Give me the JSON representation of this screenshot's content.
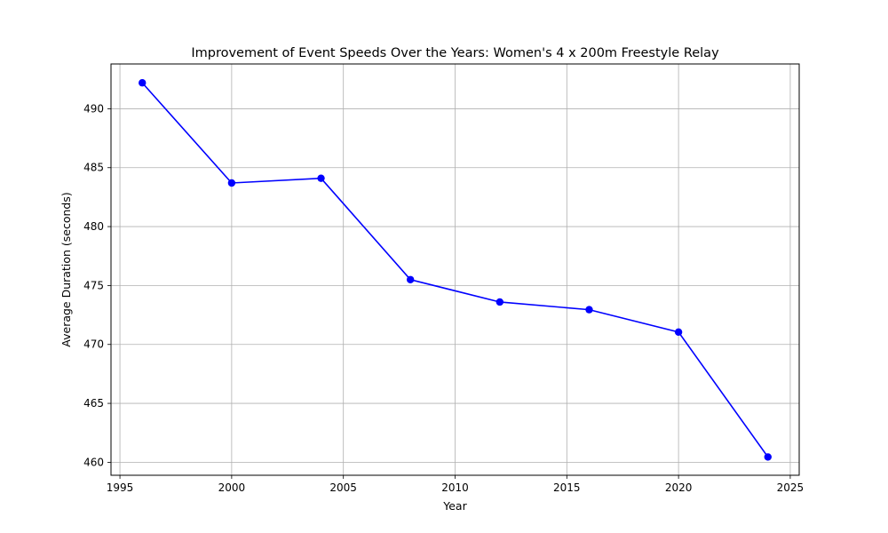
{
  "chart_data": {
    "type": "line",
    "title": "Improvement of Event Speeds Over the Years: Women's 4 x 200m Freestyle Relay",
    "xlabel": "Year",
    "ylabel": "Average Duration (seconds)",
    "xlim": [
      1994.6,
      2025.4
    ],
    "ylim": [
      458.9,
      493.8
    ],
    "xticks": [
      1995,
      2000,
      2005,
      2010,
      2015,
      2020,
      2025
    ],
    "yticks": [
      460,
      465,
      470,
      475,
      480,
      485,
      490
    ],
    "grid": true,
    "series": [
      {
        "color": "#0000ff",
        "marker": "circle",
        "points": [
          {
            "x": 1996,
            "y": 492.2
          },
          {
            "x": 2000,
            "y": 483.7
          },
          {
            "x": 2004,
            "y": 484.1
          },
          {
            "x": 2008,
            "y": 475.5
          },
          {
            "x": 2012,
            "y": 473.6
          },
          {
            "x": 2016,
            "y": 472.95
          },
          {
            "x": 2020,
            "y": 471.05
          },
          {
            "x": 2024,
            "y": 460.45
          }
        ]
      }
    ]
  }
}
